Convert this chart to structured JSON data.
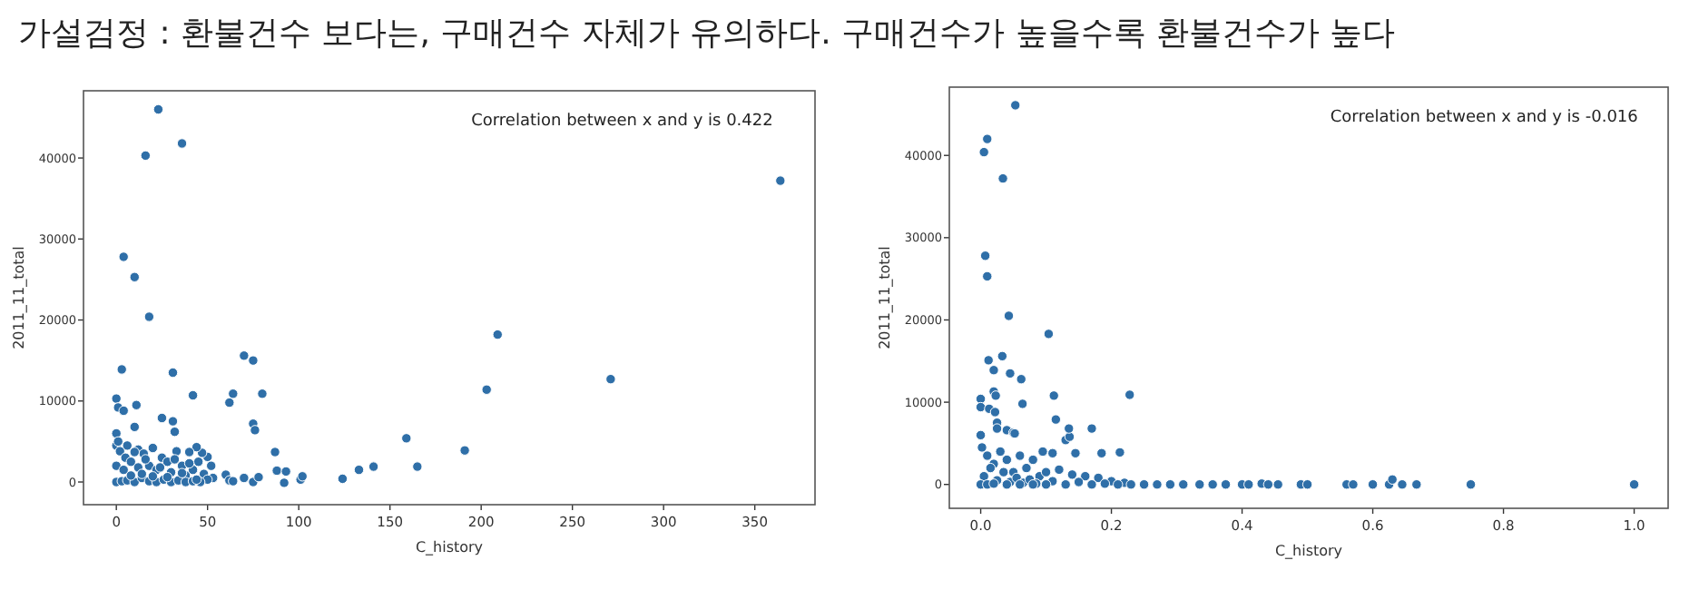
{
  "chart_data": [
    {
      "type": "scatter",
      "title": "가설검정 : 환불건수 보다는, 구매건수 자체가 유의하다. 구매건수가 높을수록 환불건수가 높다",
      "xlabel": "C_history",
      "ylabel": "2011_11_total",
      "annotations": [
        "Correlation between x and y is 0.422"
      ],
      "marker": "circle",
      "xlim": [
        -18,
        383
      ],
      "ylim": [
        -2800,
        48300
      ],
      "xticks": [
        0,
        50,
        100,
        150,
        200,
        250,
        300,
        350
      ],
      "yticks": [
        0,
        10000,
        20000,
        30000,
        40000
      ],
      "series": [
        {
          "color": "#2f6fa8",
          "x": [
            23,
            16,
            36,
            364,
            4,
            10,
            18,
            3,
            31,
            70,
            75,
            209,
            203,
            271,
            80,
            64,
            62,
            42,
            0,
            1,
            4,
            11,
            10,
            25,
            31,
            32,
            75,
            76,
            87,
            88,
            93,
            92,
            101,
            102,
            124,
            133,
            141,
            159,
            165,
            191,
            60,
            62,
            64,
            70,
            75,
            78,
            50,
            52,
            47,
            44,
            40,
            53,
            0,
            0,
            2,
            5,
            8,
            12,
            15,
            18,
            20,
            22,
            25,
            28,
            30,
            33,
            36,
            38,
            42,
            45,
            48,
            50,
            0,
            3,
            6,
            10,
            14,
            18,
            22,
            26,
            30,
            34,
            38,
            42,
            46,
            0,
            4,
            8,
            12,
            16,
            20,
            24,
            28,
            32,
            36,
            40,
            44,
            1,
            6,
            10,
            14
          ],
          "values": [
            46000,
            40300,
            41800,
            37200,
            27800,
            25300,
            20400,
            13900,
            13500,
            15600,
            15000,
            18200,
            11400,
            12700,
            10900,
            10900,
            9800,
            10700,
            10300,
            9200,
            8800,
            9500,
            6800,
            7900,
            7500,
            6200,
            7200,
            6400,
            3700,
            1400,
            1300,
            -100,
            300,
            700,
            400,
            1500,
            1900,
            5400,
            1900,
            3900,
            900,
            200,
            100,
            500,
            0,
            600,
            3100,
            2000,
            3600,
            4300,
            3700,
            500,
            6000,
            4500,
            3800,
            3000,
            2500,
            4000,
            3500,
            2000,
            4200,
            1500,
            3000,
            2500,
            1200,
            3800,
            2000,
            800,
            1500,
            2500,
            1000,
            300,
            0,
            100,
            200,
            0,
            500,
            100,
            0,
            300,
            0,
            200,
            0,
            100,
            0,
            2000,
            1500,
            800,
            1800,
            2800,
            700,
            1800,
            600,
            2800,
            1100,
            2300,
            300,
            5000,
            4500,
            3700,
            1000
          ]
        }
      ]
    },
    {
      "type": "scatter",
      "xlabel": "C_history",
      "ylabel": "2011_11_total",
      "annotations": [
        "Correlation between x and y is -0.016"
      ],
      "marker": "circle",
      "xlim": [
        -0.048,
        1.052
      ],
      "ylim": [
        -2900,
        48300
      ],
      "xticks": [
        {
          "value": 0,
          "label": "0.0"
        },
        0.2,
        0.4,
        0.6,
        0.8,
        {
          "value": 1,
          "label": "1.0"
        }
      ],
      "yticks": [
        0,
        10000,
        20000,
        30000,
        40000
      ],
      "series": [
        {
          "color": "#2f6fa8",
          "x": [
            0.053,
            0.005,
            0.01,
            0.034,
            0.007,
            0.01,
            0.043,
            0.104,
            0.012,
            0.033,
            0.02,
            0.045,
            0.062,
            0.02,
            0.023,
            0.112,
            0.228,
            0,
            0,
            0.013,
            0.022,
            0.025,
            0.025,
            0.064,
            0.04,
            0.05,
            0.052,
            0.115,
            0.13,
            0.136,
            0.135,
            0.17,
            0.145,
            0.185,
            0.213,
            0.11,
            0.095,
            0,
            0.002,
            0.01,
            0.02,
            0.03,
            0.04,
            0.05,
            0.06,
            0.07,
            0.08,
            0.09,
            0.1,
            0.12,
            0.14,
            0.16,
            0.18,
            0.2,
            0.22,
            0.005,
            0.015,
            0.025,
            0.035,
            0.045,
            0.055,
            0.065,
            0.075,
            0.085,
            0.11,
            0.13,
            0.15,
            0.17,
            0.19,
            0.21,
            0.23,
            0.25,
            0.27,
            0.29,
            0.31,
            0.335,
            0.355,
            0.375,
            0.4,
            0.41,
            0.43,
            0.44,
            0.455,
            0.49,
            0.5,
            0.56,
            0.57,
            0.6,
            0.625,
            0.63,
            0.645,
            0.667,
            0.75,
            1.0,
            0,
            0.01,
            0.02,
            0.04,
            0.06,
            0.08,
            0.1
          ],
          "values": [
            46100,
            40400,
            42000,
            37200,
            27800,
            25300,
            20500,
            18300,
            15100,
            15600,
            13900,
            13500,
            12800,
            11300,
            10800,
            10800,
            10900,
            10400,
            9400,
            9200,
            8800,
            7500,
            6800,
            9800,
            6600,
            6300,
            6200,
            7900,
            5400,
            5800,
            6800,
            6800,
            3800,
            3800,
            3900,
            3800,
            4000,
            6000,
            4500,
            3500,
            2500,
            4000,
            3000,
            1500,
            3500,
            2000,
            3000,
            1000,
            1500,
            1800,
            1200,
            1000,
            800,
            400,
            200,
            1000,
            2000,
            500,
            1500,
            300,
            800,
            200,
            600,
            100,
            400,
            0,
            300,
            0,
            100,
            0,
            0,
            0,
            0,
            0,
            0,
            0,
            0,
            0,
            0,
            0,
            100,
            0,
            0,
            0,
            0,
            0,
            0,
            0,
            0,
            600,
            0,
            0,
            0,
            0,
            0,
            0,
            100,
            0,
            0,
            0,
            0
          ]
        }
      ]
    }
  ]
}
